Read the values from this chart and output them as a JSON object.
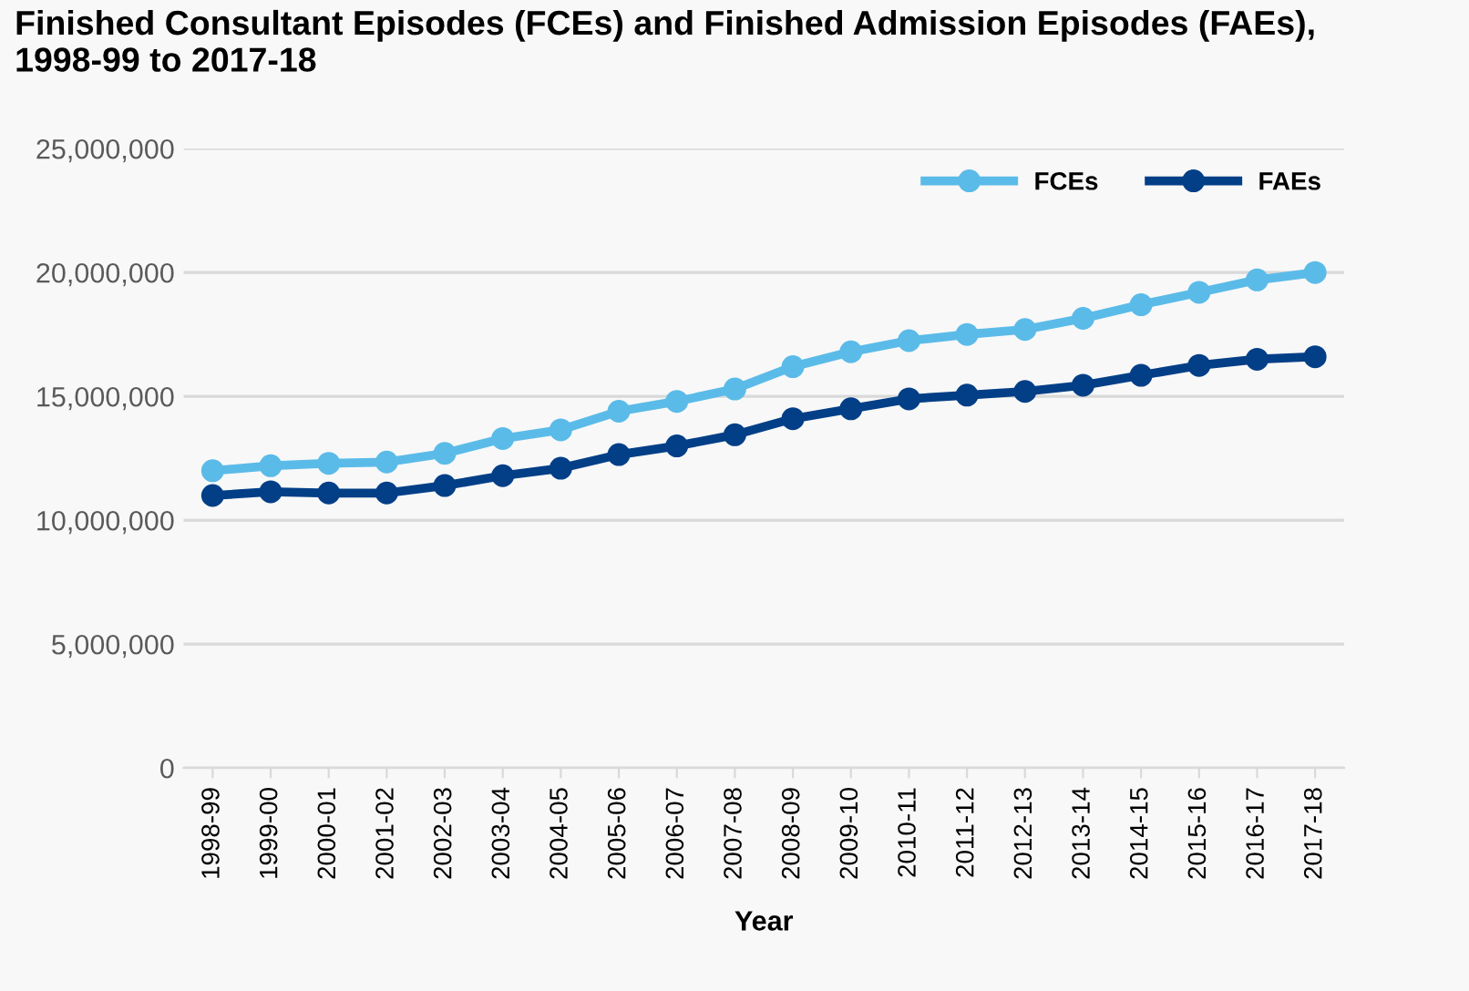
{
  "chart_data": {
    "type": "line",
    "title": "Finished Consultant Episodes (FCEs) and Finished Admission Episodes (FAEs),\n1998-99 to 2017-18",
    "xlabel": "Year",
    "categories": [
      "1998-99",
      "1999-00",
      "2000-01",
      "2001-02",
      "2002-03",
      "2003-04",
      "2004-05",
      "2005-06",
      "2006-07",
      "2007-08",
      "2008-09",
      "2009-10",
      "2010-11",
      "2011-12",
      "2012-13",
      "2013-14",
      "2014-15",
      "2015-16",
      "2016-17",
      "2017-18"
    ],
    "series": [
      {
        "name": "FCEs",
        "color": "#5bbbe8",
        "values": [
          12000000,
          12200000,
          12300000,
          12350000,
          12700000,
          13300000,
          13650000,
          14400000,
          14800000,
          15300000,
          16200000,
          16800000,
          17250000,
          17500000,
          17700000,
          18150000,
          18700000,
          19200000,
          19700000,
          20000000
        ]
      },
      {
        "name": "FAEs",
        "color": "#033f87",
        "values": [
          11000000,
          11150000,
          11100000,
          11100000,
          11400000,
          11800000,
          12100000,
          12650000,
          13000000,
          13450000,
          14100000,
          14500000,
          14900000,
          15050000,
          15200000,
          15450000,
          15850000,
          16250000,
          16500000,
          16600000
        ]
      }
    ],
    "ylim": [
      0,
      25000000
    ],
    "yticks": [
      {
        "value": 0,
        "label": "0"
      },
      {
        "value": 5000000,
        "label": "5,000,000"
      },
      {
        "value": 10000000,
        "label": "10,000,000"
      },
      {
        "value": 15000000,
        "label": "15,000,000"
      },
      {
        "value": 20000000,
        "label": "20,000,000"
      },
      {
        "value": 25000000,
        "label": "25,000,000"
      }
    ],
    "grid": "y",
    "legend": "top right",
    "marker": "circle",
    "line_style": "solid"
  }
}
